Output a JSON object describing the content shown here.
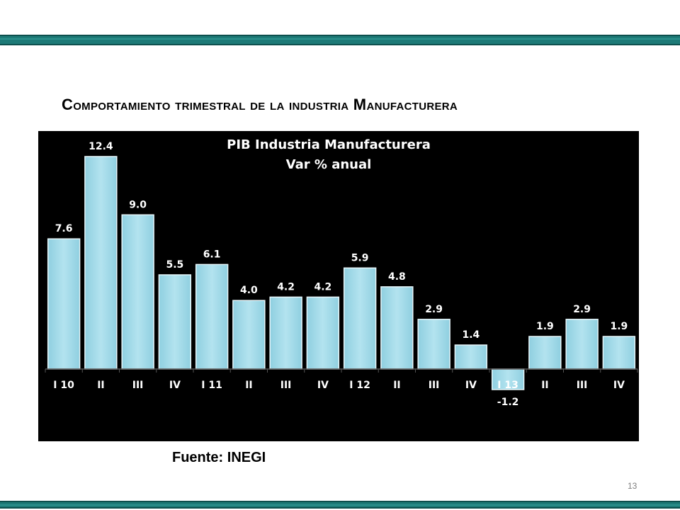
{
  "slide": {
    "title": "Comportamiento trimestral de la industria Manufacturera",
    "source": "Fuente: INEGI",
    "page_number": "13"
  },
  "colors": {
    "accent_band": "#1d7a77",
    "bar_fill": "#a6dcea",
    "bar_edge": "#e8f7fb",
    "chart_background": "#000000",
    "label_text": "#ffffff"
  },
  "chart_data": {
    "type": "bar",
    "title": "PIB Industria Manufacturera",
    "subtitle": "Var % anual",
    "categories": [
      "I 10",
      "II",
      "III",
      "IV",
      "I 11",
      "II",
      "III",
      "IV",
      "I 12",
      "II",
      "III",
      "IV",
      "I 13",
      "II",
      "III",
      "IV"
    ],
    "values": [
      7.6,
      12.4,
      9.0,
      5.5,
      6.1,
      4.0,
      4.2,
      4.2,
      5.9,
      4.8,
      2.9,
      1.4,
      -1.2,
      1.9,
      2.9,
      1.9
    ],
    "value_labels": [
      "7.6",
      "12.4",
      "9.0",
      "5.5",
      "6.1",
      "4.0",
      "4.2",
      "4.2",
      "5.9",
      "4.8",
      "2.9",
      "1.4",
      "-1.2",
      "1.9",
      "2.9",
      "1.9"
    ],
    "ylim": [
      -1.2,
      12.4
    ],
    "grid": false,
    "legend": "none"
  }
}
